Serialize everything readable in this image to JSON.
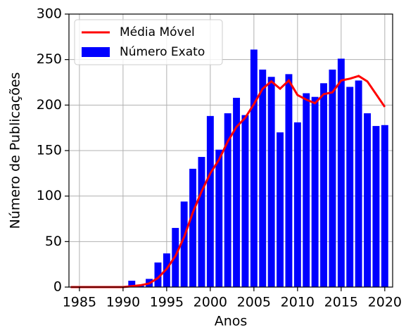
{
  "chart_data": {
    "type": "bar_line",
    "xlabel": "Anos",
    "ylabel": "Número de Publicações",
    "x": [
      1984,
      1985,
      1986,
      1987,
      1988,
      1989,
      1990,
      1991,
      1992,
      1993,
      1994,
      1995,
      1996,
      1997,
      1998,
      1999,
      2000,
      2001,
      2002,
      2003,
      2004,
      2005,
      2006,
      2007,
      2008,
      2009,
      2010,
      2011,
      2012,
      2013,
      2014,
      2015,
      2016,
      2017,
      2018,
      2019,
      2020
    ],
    "series": [
      {
        "name": "Média Móvel",
        "type": "line",
        "color": "#ff0000",
        "values": [
          0,
          0,
          0,
          0,
          0,
          0,
          0,
          1,
          2,
          4,
          10,
          20,
          34,
          55,
          82,
          105,
          125,
          140,
          160,
          176,
          186,
          201,
          218,
          226,
          218,
          227,
          211,
          206,
          202,
          212,
          214,
          227,
          229,
          232,
          226,
          212,
          198
        ]
      },
      {
        "name": "Número Exato",
        "type": "bar",
        "color": "#0000ff",
        "values": [
          0,
          0,
          0,
          0,
          0,
          0,
          0,
          7,
          2,
          9,
          27,
          37,
          65,
          94,
          130,
          143,
          188,
          151,
          191,
          208,
          189,
          261,
          239,
          231,
          170,
          234,
          181,
          213,
          209,
          224,
          239,
          251,
          220,
          227,
          191,
          177,
          178
        ]
      }
    ],
    "xlim": [
      1983.8,
      2020.9
    ],
    "xticks": [
      1985,
      1990,
      1995,
      2000,
      2005,
      2010,
      2015,
      2020
    ],
    "ylim": [
      0,
      300
    ],
    "yticks": [
      0,
      50,
      100,
      150,
      200,
      250,
      300
    ],
    "grid": true,
    "legend": "upper left"
  }
}
